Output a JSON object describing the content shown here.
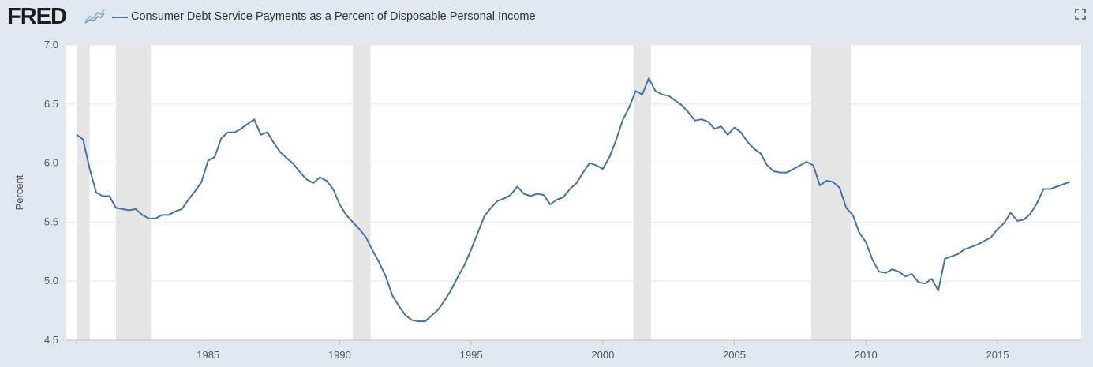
{
  "header": {
    "logo_text": "FRED",
    "legend_label": "Consumer Debt Service Payments as a Percent of Disposable Personal Income",
    "expand_icon": "fullscreen-icon"
  },
  "colors": {
    "background": "#e1e9f0",
    "plot_background": "#ffffff",
    "series": "#4572a7",
    "recession": "#e5e5e5",
    "grid": "#e6e6e6"
  },
  "chart_data": {
    "type": "line",
    "title": "",
    "ylabel": "Percent",
    "xlabel": "",
    "xlim": [
      1980.0,
      2018.0
    ],
    "ylim": [
      4.5,
      7.0
    ],
    "yticks": [
      4.5,
      5.0,
      5.5,
      6.0,
      6.5,
      7.0
    ],
    "ytick_labels": [
      "4.5",
      "5.0",
      "5.5",
      "6.0",
      "6.5",
      "7.0"
    ],
    "xticks": [
      1985,
      1990,
      1995,
      2000,
      2005,
      2010,
      2015
    ],
    "xtick_labels": [
      "1985",
      "1990",
      "1995",
      "2000",
      "2005",
      "2010",
      "2015"
    ],
    "grid": "horizontal",
    "recessions": [
      [
        1980.0,
        1980.5
      ],
      [
        1981.5,
        1982.83
      ],
      [
        1990.5,
        1991.17
      ],
      [
        2001.17,
        2001.83
      ],
      [
        2007.92,
        2009.42
      ]
    ],
    "series": [
      {
        "name": "Consumer Debt Service Payments as a Percent of Disposable Personal Income",
        "x": [
          1980.0,
          1980.25,
          1980.5,
          1980.75,
          1981.0,
          1981.25,
          1981.5,
          1981.75,
          1982.0,
          1982.25,
          1982.5,
          1982.75,
          1983.0,
          1983.25,
          1983.5,
          1983.75,
          1984.0,
          1984.25,
          1984.5,
          1984.75,
          1985.0,
          1985.25,
          1985.5,
          1985.75,
          1986.0,
          1986.25,
          1986.5,
          1986.75,
          1987.0,
          1987.25,
          1987.5,
          1987.75,
          1988.0,
          1988.25,
          1988.5,
          1988.75,
          1989.0,
          1989.25,
          1989.5,
          1989.75,
          1990.0,
          1990.25,
          1990.5,
          1990.75,
          1991.0,
          1991.25,
          1991.5,
          1991.75,
          1992.0,
          1992.25,
          1992.5,
          1992.75,
          1993.0,
          1993.25,
          1993.5,
          1993.75,
          1994.0,
          1994.25,
          1994.5,
          1994.75,
          1995.0,
          1995.25,
          1995.5,
          1995.75,
          1996.0,
          1996.25,
          1996.5,
          1996.75,
          1997.0,
          1997.25,
          1997.5,
          1997.75,
          1998.0,
          1998.25,
          1998.5,
          1998.75,
          1999.0,
          1999.25,
          1999.5,
          1999.75,
          2000.0,
          2000.25,
          2000.5,
          2000.75,
          2001.0,
          2001.25,
          2001.5,
          2001.75,
          2002.0,
          2002.25,
          2002.5,
          2002.75,
          2003.0,
          2003.25,
          2003.5,
          2003.75,
          2004.0,
          2004.25,
          2004.5,
          2004.75,
          2005.0,
          2005.25,
          2005.5,
          2005.75,
          2006.0,
          2006.25,
          2006.5,
          2006.75,
          2007.0,
          2007.25,
          2007.5,
          2007.75,
          2008.0,
          2008.25,
          2008.5,
          2008.75,
          2009.0,
          2009.25,
          2009.5,
          2009.75,
          2010.0,
          2010.25,
          2010.5,
          2010.75,
          2011.0,
          2011.25,
          2011.5,
          2011.75,
          2012.0,
          2012.25,
          2012.5,
          2012.75,
          2013.0,
          2013.25,
          2013.5,
          2013.75,
          2014.0,
          2014.25,
          2014.5,
          2014.75,
          2015.0,
          2015.25,
          2015.5,
          2015.75,
          2016.0,
          2016.25,
          2016.5,
          2016.75,
          2017.0,
          2017.25,
          2017.5,
          2017.75
        ],
        "y": [
          6.24,
          6.2,
          5.95,
          5.75,
          5.72,
          5.72,
          5.62,
          5.61,
          5.6,
          5.61,
          5.56,
          5.53,
          5.53,
          5.56,
          5.56,
          5.59,
          5.61,
          5.69,
          5.76,
          5.84,
          6.02,
          6.05,
          6.21,
          6.26,
          6.26,
          6.29,
          6.33,
          6.37,
          6.24,
          6.26,
          6.17,
          6.09,
          6.04,
          5.99,
          5.92,
          5.86,
          5.83,
          5.88,
          5.85,
          5.78,
          5.65,
          5.56,
          5.5,
          5.44,
          5.37,
          5.26,
          5.16,
          5.04,
          4.88,
          4.79,
          4.71,
          4.67,
          4.66,
          4.66,
          4.71,
          4.76,
          4.84,
          4.93,
          5.04,
          5.14,
          5.27,
          5.41,
          5.55,
          5.62,
          5.68,
          5.7,
          5.73,
          5.8,
          5.74,
          5.72,
          5.74,
          5.73,
          5.65,
          5.69,
          5.71,
          5.78,
          5.83,
          5.92,
          6.0,
          5.98,
          5.95,
          6.05,
          6.19,
          6.36,
          6.47,
          6.61,
          6.58,
          6.72,
          6.61,
          6.58,
          6.57,
          6.53,
          6.49,
          6.43,
          6.36,
          6.37,
          6.35,
          6.29,
          6.31,
          6.24,
          6.3,
          6.26,
          6.18,
          6.12,
          6.08,
          5.98,
          5.93,
          5.92,
          5.92,
          5.95,
          5.98,
          6.01,
          5.98,
          5.81,
          5.85,
          5.84,
          5.79,
          5.62,
          5.56,
          5.41,
          5.33,
          5.18,
          5.08,
          5.07,
          5.1,
          5.08,
          5.04,
          5.06,
          4.99,
          4.98,
          5.02,
          4.92,
          5.19,
          5.21,
          5.23,
          5.27,
          5.29,
          5.31,
          5.34,
          5.37,
          5.44,
          5.49,
          5.58,
          5.51,
          5.52,
          5.57,
          5.66,
          5.78,
          5.78,
          5.8,
          5.82,
          5.84
        ]
      }
    ]
  }
}
